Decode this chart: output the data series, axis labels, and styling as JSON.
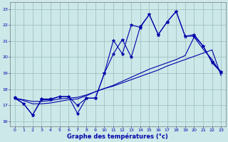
{
  "xlabel": "Graphe des températures (°c)",
  "background_color": "#cce8e8",
  "line_color": "#0000aa",
  "grid_color": "#99bbbb",
  "x_values": [
    0,
    1,
    2,
    3,
    4,
    5,
    6,
    7,
    8,
    9,
    10,
    11,
    12,
    13,
    14,
    15,
    16,
    17,
    18,
    19,
    20,
    21,
    22,
    23
  ],
  "series1": [
    17.5,
    17.1,
    16.4,
    17.4,
    17.4,
    17.55,
    17.55,
    17.0,
    17.45,
    17.45,
    19.0,
    20.2,
    21.1,
    20.0,
    21.9,
    22.65,
    21.4,
    22.2,
    22.85,
    21.3,
    21.3,
    20.7,
    19.7,
    19.1
  ],
  "series2": [
    17.45,
    17.1,
    16.4,
    17.35,
    17.35,
    17.55,
    17.55,
    16.5,
    17.45,
    17.45,
    19.0,
    21.05,
    20.2,
    22.0,
    21.85,
    22.65,
    21.4,
    22.2,
    22.85,
    21.3,
    21.4,
    20.7,
    19.65,
    19.05
  ],
  "trend1": [
    17.45,
    17.35,
    17.25,
    17.25,
    17.3,
    17.4,
    17.45,
    17.5,
    17.65,
    17.85,
    18.05,
    18.2,
    18.4,
    18.6,
    18.8,
    19.0,
    19.2,
    19.45,
    19.65,
    19.85,
    20.05,
    20.25,
    20.45,
    18.85
  ],
  "trend2": [
    17.45,
    17.3,
    17.1,
    17.1,
    17.15,
    17.25,
    17.35,
    17.4,
    17.6,
    17.85,
    18.05,
    18.25,
    18.5,
    18.75,
    19.0,
    19.25,
    19.45,
    19.65,
    19.85,
    20.1,
    21.25,
    20.5,
    19.85,
    19.0
  ],
  "ylim": [
    15.7,
    23.4
  ],
  "xlim": [
    -0.5,
    23.5
  ],
  "yticks": [
    16,
    17,
    18,
    19,
    20,
    21,
    22,
    23
  ],
  "xticks": [
    0,
    1,
    2,
    3,
    4,
    5,
    6,
    7,
    8,
    9,
    10,
    11,
    12,
    13,
    14,
    15,
    16,
    17,
    18,
    19,
    20,
    21,
    22,
    23
  ]
}
